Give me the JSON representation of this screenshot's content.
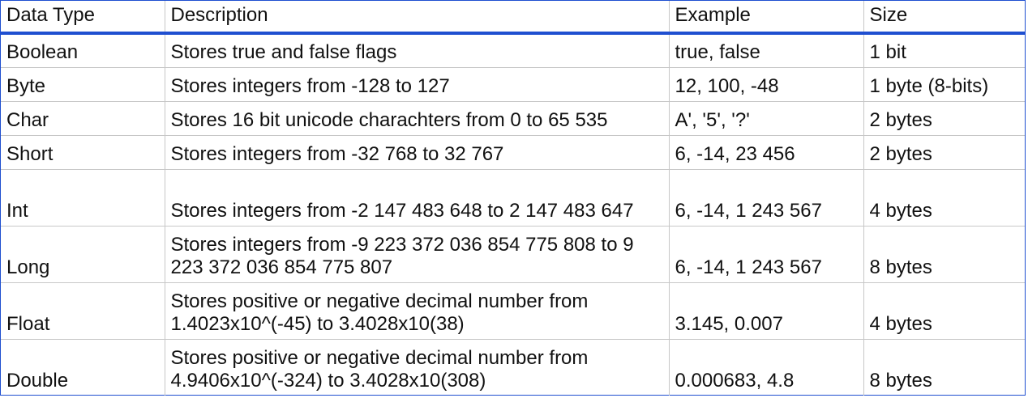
{
  "table": {
    "headers": [
      "Data Type",
      "Description",
      "Example",
      "Size"
    ],
    "rows": [
      {
        "type": "Boolean",
        "description": "Stores true and false flags",
        "example": "true, false",
        "size": "1 bit"
      },
      {
        "type": "Byte",
        "description": "Stores integers from -128 to 127",
        "example": "12, 100, -48",
        "size": "1 byte (8-bits)"
      },
      {
        "type": "Char",
        "description": "Stores 16 bit unicode charachters from 0 to 65 535",
        "example": "A', '5', '?'",
        "size": "2 bytes"
      },
      {
        "type": "Short",
        "description": "Stores integers from -32 768 to 32 767",
        "example": "6, -14, 23 456",
        "size": "2 bytes"
      },
      {
        "type": "Int",
        "description": "Stores integers from -2 147 483 648 to 2 147 483 647",
        "example": "6, -14, 1 243 567",
        "size": "4 bytes"
      },
      {
        "type": "Long",
        "description": "Stores integers from -9 223 372 036 854 775 808 to 9 223 372 036 854 775 807",
        "example": "6, -14, 1 243 567",
        "size": "8 bytes"
      },
      {
        "type": "Float",
        "description": "Stores positive or negative decimal number from 1.4023x10^(-45) to 3.4028x10(38)",
        "example": "3.145, 0.007",
        "size": "4 bytes"
      },
      {
        "type": "Double",
        "description": "Stores positive or negative decimal number from 4.9406x10^(-324) to 3.4028x10(308)",
        "example": "0.000683, 4.8",
        "size": "8 bytes"
      }
    ]
  },
  "colors": {
    "accent": "#1f4fd0",
    "grid": "#c7c7c7",
    "text": "#111111"
  }
}
